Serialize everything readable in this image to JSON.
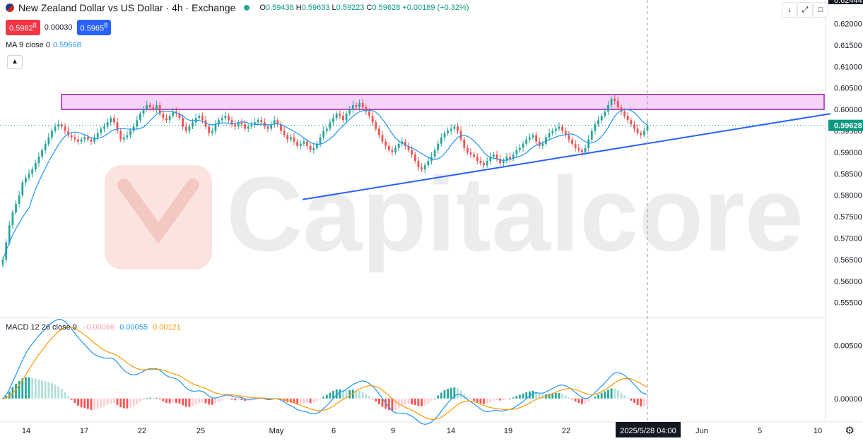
{
  "header": {
    "title": "New Zealand Dollar vs US Dollar · 4h · Exchange",
    "open_label": "O",
    "open": "0.59438",
    "high_label": "H",
    "high": "0.59633",
    "low_label": "L",
    "low": "0.59223",
    "close_label": "C",
    "close": "0.59628",
    "change": "+0.00189 (+0.32%)"
  },
  "quote": {
    "sell": "0.5962",
    "sell_sup": "8",
    "spread": "0.00030",
    "buy": "0.5965",
    "buy_sup": "8"
  },
  "ma_legend": {
    "label": "MA 9 close 0",
    "value": "0.59668"
  },
  "macd_legend": {
    "label": "MACD 12 26 close 9",
    "hist": "−0.00066",
    "macd": "0.00055",
    "signal": "0.00121"
  },
  "watermark": "Capitalcore",
  "icons": {
    "collapse": "chevron-up-icon",
    "scroll": "arrow-down-icon",
    "fullscreen": "expand-icon",
    "window": "window-icon",
    "settings": "gear-icon"
  },
  "colors": {
    "up": "#26a69a",
    "down": "#ef5350",
    "ma": "#2196f3",
    "macd": "#2196f3",
    "signal": "#ff9800",
    "trendline": "#2962ff",
    "zone_fill": "#f3c4f5",
    "zone_border": "#9c27b0",
    "price_label": "#089981"
  },
  "chart_data": {
    "type": "candlestick",
    "price_axis": {
      "min": 0.5515,
      "max": 0.6255,
      "ticks": [
        "0.62000",
        "0.61500",
        "0.61000",
        "0.60500",
        "0.60000",
        "0.59500",
        "0.59000",
        "0.58500",
        "0.58000",
        "0.57500",
        "0.57000",
        "0.56500",
        "0.56000",
        "0.55500"
      ],
      "top_partial_label": "0.62444"
    },
    "current_price": "0.59628",
    "x_labels": [
      "14",
      "17",
      "22",
      "25",
      "May",
      "6",
      "9",
      "14",
      "19",
      "22",
      "2025/5/28  04:00",
      "Jun",
      "5",
      "10"
    ],
    "x_highlight": "2025/5/28  04:00",
    "resistance_zone": {
      "top": 0.6035,
      "bottom": 0.6
    },
    "trendline": {
      "start": 0.579,
      "end": 0.599
    },
    "closes": [
      0.565,
      0.569,
      0.573,
      0.576,
      0.578,
      0.58,
      0.583,
      0.584,
      0.585,
      0.586,
      0.5875,
      0.589,
      0.5905,
      0.592,
      0.5935,
      0.595,
      0.596,
      0.5965,
      0.596,
      0.595,
      0.594,
      0.5935,
      0.593,
      0.5925,
      0.593,
      0.5935,
      0.593,
      0.5925,
      0.5935,
      0.5945,
      0.5955,
      0.596,
      0.597,
      0.598,
      0.597,
      0.595,
      0.593,
      0.5935,
      0.594,
      0.595,
      0.596,
      0.5975,
      0.599,
      0.6,
      0.601,
      0.6005,
      0.6,
      0.601,
      0.599,
      0.598,
      0.5975,
      0.5985,
      0.5995,
      0.599,
      0.598,
      0.596,
      0.595,
      0.596,
      0.597,
      0.598,
      0.5985,
      0.5975,
      0.596,
      0.5945,
      0.595,
      0.5965,
      0.5975,
      0.598,
      0.5985,
      0.5975,
      0.5965,
      0.596,
      0.597,
      0.5965,
      0.5955,
      0.596,
      0.5965,
      0.597,
      0.5975,
      0.597,
      0.596,
      0.5955,
      0.5965,
      0.5975,
      0.5965,
      0.595,
      0.594,
      0.593,
      0.5935,
      0.5925,
      0.5915,
      0.592,
      0.5925,
      0.5915,
      0.5905,
      0.591,
      0.592,
      0.5935,
      0.595,
      0.5955,
      0.597,
      0.598,
      0.599,
      0.5985,
      0.5975,
      0.599,
      0.6,
      0.601,
      0.6005,
      0.6015,
      0.6005,
      0.5995,
      0.5985,
      0.597,
      0.5955,
      0.594,
      0.5925,
      0.5915,
      0.5905,
      0.59,
      0.591,
      0.592,
      0.5925,
      0.5915,
      0.5905,
      0.5895,
      0.588,
      0.5865,
      0.586,
      0.587,
      0.588,
      0.589,
      0.5905,
      0.592,
      0.5935,
      0.5945,
      0.595,
      0.5955,
      0.596,
      0.595,
      0.593,
      0.591,
      0.59,
      0.5895,
      0.589,
      0.588,
      0.5875,
      0.587,
      0.588,
      0.589,
      0.5895,
      0.5885,
      0.5875,
      0.588,
      0.589,
      0.5885,
      0.5895,
      0.5905,
      0.591,
      0.592,
      0.593,
      0.5935,
      0.594,
      0.5925,
      0.5915,
      0.592,
      0.5935,
      0.5945,
      0.595,
      0.5955,
      0.596,
      0.595,
      0.594,
      0.593,
      0.592,
      0.591,
      0.5905,
      0.59,
      0.591,
      0.593,
      0.595,
      0.5965,
      0.5975,
      0.5985,
      0.5995,
      0.601,
      0.6025,
      0.602,
      0.6005,
      0.5995,
      0.5985,
      0.5975,
      0.5965,
      0.5955,
      0.5945,
      0.594,
      0.595,
      0.5963
    ],
    "macd_axis": {
      "min": -0.0022,
      "max": 0.0076,
      "ticks": [
        "0.00500",
        "0.00000"
      ]
    },
    "macd_series": {
      "macd": "MACD",
      "signal": "signal",
      "histogram": "histogram"
    }
  }
}
